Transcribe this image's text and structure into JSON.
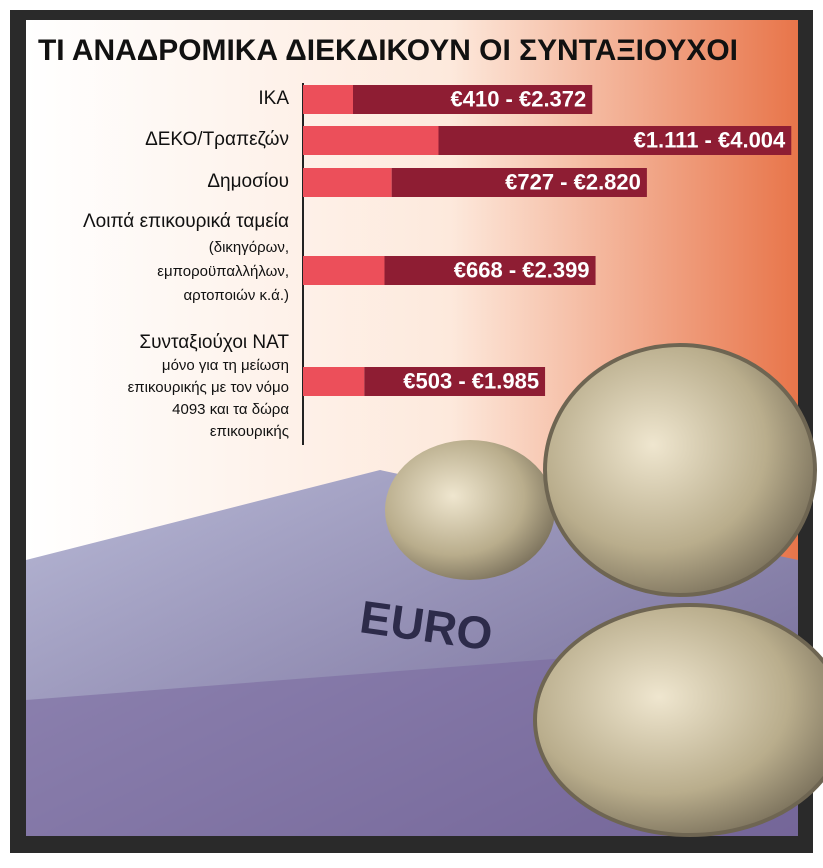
{
  "chart_data": {
    "type": "range-bar",
    "title": "ΤΙ ΑΝΑΔΡΟΜΙΚΑ ΔΙΕΚΔΙΚΟΥΝ ΟΙ ΣΥΝΤΑΞΙΟΥΧΟΙ",
    "categories": [
      "ΙΚΑ",
      "ΔΕΚΟ/Τραπεζών",
      "Δημοσίου",
      "Λοιπά επικουρικά ταμεία",
      "Συνταξιούχοι ΝΑΤ"
    ],
    "category_notes": {
      "3": [
        "(δικηγόρων,",
        "εμποροϋπαλλήλων,",
        "αρτοποιών κ.ά.)"
      ],
      "4": [
        "μόνο για τη μείωση",
        "επικουρικής με τον νόμο",
        "4093 και τα δώρα",
        "επικουρικής"
      ]
    },
    "low": [
      410,
      1111,
      727,
      668,
      503
    ],
    "high": [
      2372,
      4004,
      2820,
      2399,
      1985
    ],
    "value_labels": [
      "€410 - €2.372",
      "€1.111 - €4.004",
      "€727 - €2.820",
      "€668 - €2.399",
      "€503 - €1.985"
    ],
    "low_color": "#ec4f5a",
    "high_color": "#8e1d33",
    "xlim": [
      0,
      4100
    ]
  }
}
